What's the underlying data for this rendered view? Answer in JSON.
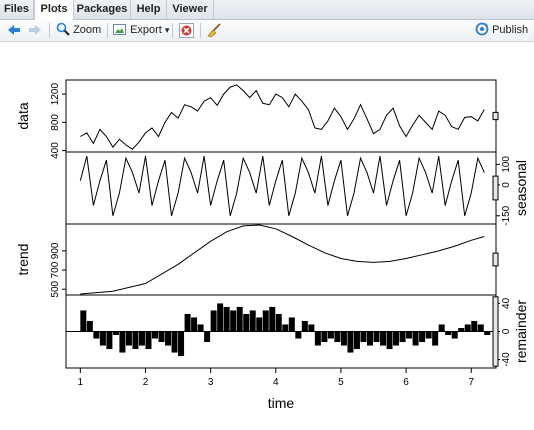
{
  "tabs": [
    {
      "label": "Files"
    },
    {
      "label": "Plots"
    },
    {
      "label": "Packages"
    },
    {
      "label": "Help"
    },
    {
      "label": "Viewer"
    }
  ],
  "toolbar": {
    "zoom_label": "Zoom",
    "export_label": "Export",
    "publish_label": "Publish",
    "export_arrow": "▾"
  },
  "colors": {
    "accent_blue": "#2a7fd4",
    "delete_red": "#d9312b",
    "plot_line": "#000000"
  },
  "chart_data": {
    "type": "line",
    "xlabel": "time",
    "x_ticks": [
      1,
      2,
      3,
      4,
      5,
      6,
      7
    ],
    "xlim": [
      0.78,
      7.38
    ],
    "panels": [
      {
        "name": "data",
        "ylabel": "data",
        "ticks": [
          400,
          800,
          1200
        ],
        "ylim": [
          380,
          1400
        ],
        "x": [
          1,
          1.1,
          1.2,
          1.3,
          1.4,
          1.5,
          1.6,
          1.7,
          1.8,
          1.9,
          2,
          2.1,
          2.2,
          2.3,
          2.4,
          2.5,
          2.6,
          2.7,
          2.8,
          2.9,
          3,
          3.1,
          3.2,
          3.3,
          3.4,
          3.5,
          3.6,
          3.7,
          3.8,
          3.9,
          4,
          4.1,
          4.2,
          4.3,
          4.4,
          4.5,
          4.6,
          4.7,
          4.8,
          4.9,
          5,
          5.1,
          5.2,
          5.3,
          5.4,
          5.5,
          5.6,
          5.7,
          5.8,
          5.9,
          6,
          6.1,
          6.2,
          6.3,
          6.4,
          6.5,
          6.6,
          6.7,
          6.8,
          6.9,
          7,
          7.1,
          7.2
        ],
        "y": [
          600,
          650,
          500,
          700,
          600,
          450,
          560,
          480,
          420,
          520,
          650,
          720,
          600,
          800,
          940,
          860,
          1050,
          1020,
          960,
          1100,
          1150,
          1040,
          1200,
          1300,
          1330,
          1250,
          1150,
          1250,
          1070,
          1050,
          1200,
          1150,
          1020,
          1200,
          1100,
          980,
          720,
          700,
          820,
          1000,
          880,
          700,
          850,
          1050,
          850,
          640,
          700,
          900,
          1000,
          750,
          600,
          760,
          900,
          800,
          700,
          960,
          900,
          740,
          700,
          870,
          880,
          820,
          980
        ]
      },
      {
        "name": "seasonal",
        "ylabel": "seasonal",
        "ticks": [
          -150,
          0,
          100
        ],
        "ylim": [
          -190,
          160
        ],
        "x": [
          1,
          1.1,
          1.2,
          1.3,
          1.4,
          1.5,
          1.6,
          1.7,
          1.8,
          1.9,
          2,
          2.1,
          2.2,
          2.3,
          2.4,
          2.5,
          2.6,
          2.7,
          2.8,
          2.9,
          3,
          3.1,
          3.2,
          3.3,
          3.4,
          3.5,
          3.6,
          3.7,
          3.8,
          3.9,
          4,
          4.1,
          4.2,
          4.3,
          4.4,
          4.5,
          4.6,
          4.7,
          4.8,
          4.9,
          5,
          5.1,
          5.2,
          5.3,
          5.4,
          5.5,
          5.6,
          5.7,
          5.8,
          5.9,
          6,
          6.1,
          6.2,
          6.3,
          6.4,
          6.5,
          6.6,
          6.7,
          6.8,
          6.9,
          7,
          7.1,
          7.2
        ],
        "y": [
          20,
          140,
          -100,
          20,
          120,
          -150,
          -40,
          130,
          60,
          -40,
          140,
          -100,
          20,
          120,
          -150,
          -40,
          130,
          60,
          -40,
          140,
          -100,
          20,
          120,
          -150,
          -40,
          130,
          60,
          -40,
          140,
          -100,
          20,
          120,
          -150,
          -40,
          130,
          60,
          -40,
          140,
          -100,
          20,
          120,
          -150,
          -40,
          130,
          60,
          -40,
          140,
          -100,
          20,
          120,
          -150,
          -40,
          130,
          60,
          -40,
          140,
          -100,
          20,
          120,
          -150,
          -40,
          130,
          60
        ]
      },
      {
        "name": "trend",
        "ylabel": "trend",
        "ticks": [
          500,
          700,
          900
        ],
        "ylim": [
          440,
          1180
        ],
        "x": [
          1,
          1.5,
          2,
          2.5,
          3,
          3.25,
          3.5,
          3.75,
          4,
          4.25,
          4.5,
          4.75,
          5,
          5.25,
          5.5,
          5.75,
          6,
          6.25,
          6.5,
          6.75,
          7,
          7.2
        ],
        "y": [
          450,
          480,
          560,
          760,
          1000,
          1100,
          1160,
          1170,
          1130,
          1050,
          960,
          880,
          820,
          790,
          780,
          790,
          820,
          860,
          900,
          950,
          1010,
          1050
        ]
      },
      {
        "name": "remainder",
        "ylabel": "remainder",
        "ticks": [
          -40,
          0,
          40
        ],
        "ylim": [
          -52,
          52
        ],
        "type": "bar",
        "x": [
          1,
          1.1,
          1.2,
          1.3,
          1.4,
          1.5,
          1.6,
          1.7,
          1.8,
          1.9,
          2,
          2.1,
          2.2,
          2.3,
          2.4,
          2.5,
          2.6,
          2.7,
          2.8,
          2.9,
          3,
          3.1,
          3.2,
          3.3,
          3.4,
          3.5,
          3.6,
          3.7,
          3.8,
          3.9,
          4,
          4.1,
          4.2,
          4.3,
          4.4,
          4.5,
          4.6,
          4.7,
          4.8,
          4.9,
          5,
          5.1,
          5.2,
          5.3,
          5.4,
          5.5,
          5.6,
          5.7,
          5.8,
          5.9,
          6,
          6.1,
          6.2,
          6.3,
          6.4,
          6.5,
          6.6,
          6.7,
          6.8,
          6.9,
          7,
          7.1,
          7.2
        ],
        "y": [
          30,
          15,
          -10,
          -20,
          -25,
          -5,
          -30,
          -20,
          -25,
          -20,
          -25,
          -10,
          -15,
          -20,
          -30,
          -35,
          25,
          20,
          10,
          -15,
          30,
          40,
          35,
          30,
          35,
          25,
          30,
          20,
          30,
          35,
          25,
          10,
          20,
          -10,
          15,
          10,
          -20,
          -15,
          -10,
          -15,
          -20,
          -30,
          -25,
          -15,
          -20,
          -15,
          -20,
          -25,
          -20,
          -15,
          -10,
          -20,
          -15,
          -10,
          -20,
          10,
          -5,
          -10,
          5,
          10,
          15,
          10,
          -5
        ]
      }
    ],
    "range_bars": [
      {
        "panel": "data",
        "height_fraction": 0.1
      },
      {
        "panel": "seasonal",
        "height_fraction": 0.33
      },
      {
        "panel": "trend",
        "height_fraction": 0.18
      },
      {
        "panel": "remainder",
        "height_fraction": 0.95
      }
    ]
  }
}
